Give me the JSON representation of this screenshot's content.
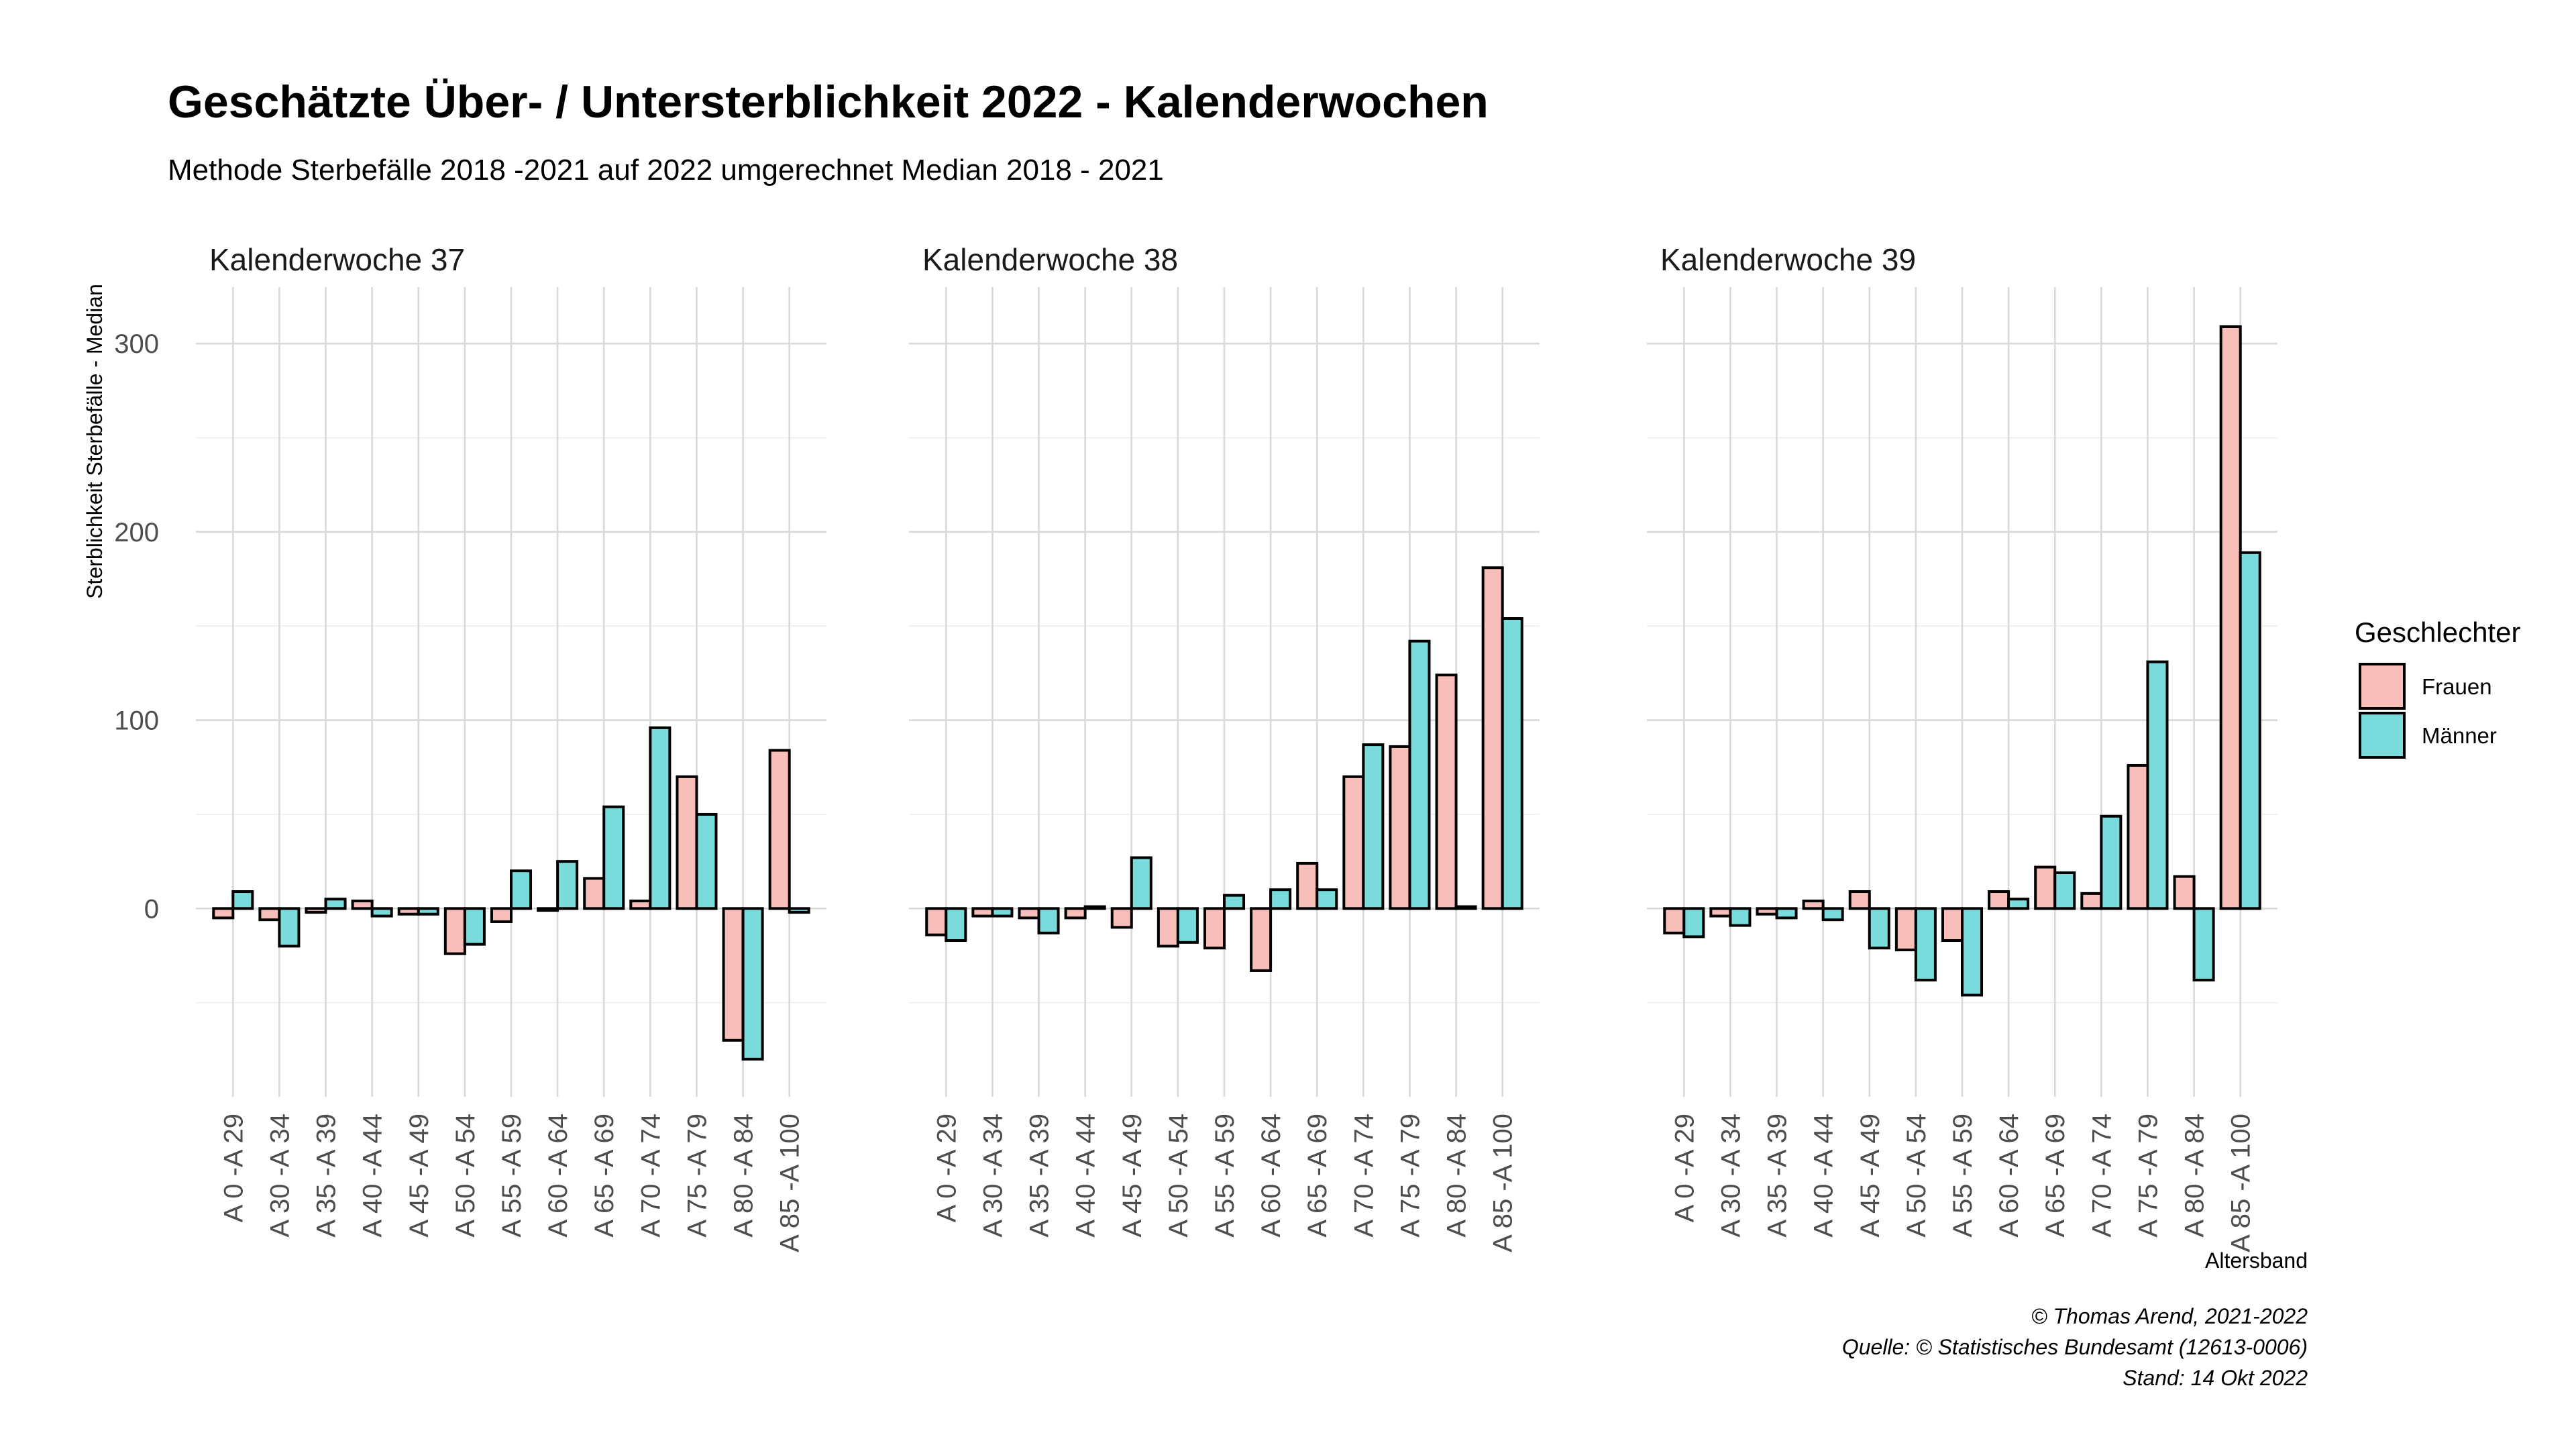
{
  "chart_data": {
    "type": "bar",
    "title": "Geschätzte Über- / Untersterblichkeit 2022 - Kalenderwochen",
    "subtitle": "Methode Sterbefälle 2018 -2021 auf 2022 umgerechnet Median 2018 - 2021",
    "ylabel": "Sterblichkeit Sterbefälle - Median",
    "xlabel": "Altersband",
    "ylim": [
      -100,
      330
    ],
    "yticks": [
      0,
      100,
      200,
      300
    ],
    "categories": [
      "A 0 -A 29",
      "A 30 -A 34",
      "A 35 -A 39",
      "A 40 -A 44",
      "A 45 -A 49",
      "A 50 -A 54",
      "A 55 -A 59",
      "A 60 -A 64",
      "A 65 -A 69",
      "A 70 -A 74",
      "A 75 -A 79",
      "A 80 -A 84",
      "A 85 -A 100"
    ],
    "legend": {
      "title": "Geschlechter",
      "position": "right",
      "entries": [
        {
          "name": "Frauen",
          "color": "#F8BEB9"
        },
        {
          "name": "Männer",
          "color": "#7ADBDC"
        }
      ]
    },
    "facets": [
      {
        "strip": "Kalenderwoche 37",
        "series": [
          {
            "name": "Frauen",
            "values": [
              -5,
              -6,
              -2,
              4,
              -3,
              -24,
              -7,
              -1,
              16,
              4,
              70,
              -70,
              84
            ]
          },
          {
            "name": "Männer",
            "values": [
              9,
              -20,
              5,
              -4,
              -3,
              -19,
              20,
              25,
              54,
              96,
              50,
              -80,
              -2
            ]
          }
        ]
      },
      {
        "strip": "Kalenderwoche 38",
        "series": [
          {
            "name": "Frauen",
            "values": [
              -14,
              -4,
              -5,
              -5,
              -10,
              -20,
              -21,
              -33,
              24,
              70,
              86,
              124,
              181
            ]
          },
          {
            "name": "Männer",
            "values": [
              -17,
              -4,
              -13,
              1,
              27,
              -18,
              7,
              10,
              10,
              87,
              142,
              1,
              154
            ]
          }
        ]
      },
      {
        "strip": "Kalenderwoche 39",
        "series": [
          {
            "name": "Frauen",
            "values": [
              -13,
              -4,
              -3,
              4,
              9,
              -22,
              -17,
              9,
              22,
              8,
              76,
              17,
              309
            ]
          },
          {
            "name": "Männer",
            "values": [
              -15,
              -9,
              -5,
              -6,
              -21,
              -38,
              -46,
              5,
              19,
              49,
              131,
              -38,
              189
            ]
          }
        ]
      }
    ],
    "grid": true
  },
  "caption": {
    "line1": "© Thomas Arend, 2021-2022",
    "line2": "Quelle: © Statistisches Bundesamt (12613-0006)",
    "line3": "Stand: 14 Okt 2022"
  }
}
